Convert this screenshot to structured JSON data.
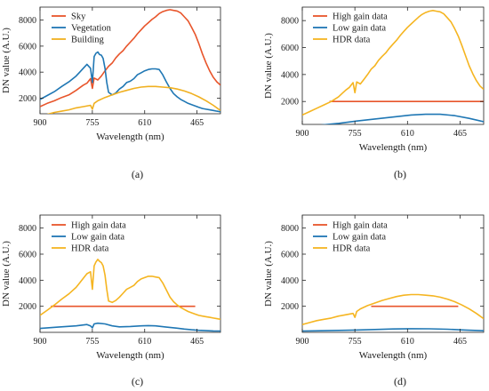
{
  "chart_data": [
    {
      "type": "line",
      "caption": "(a)",
      "xlabel": "Wavelength (nm)",
      "ylabel": "DN value (A.U.)",
      "x_ticks": [
        "900",
        "755",
        "610",
        "465"
      ],
      "y_ticks": [
        "2000",
        "4000",
        "6000",
        "8000"
      ],
      "xlim": [
        900,
        400
      ],
      "ylim": [
        800,
        9000
      ],
      "legend_position": "top-left",
      "series": [
        {
          "name": "Sky",
          "color": "#e8552b",
          "x": [
            900,
            880,
            860,
            840,
            820,
            800,
            790,
            780,
            770,
            760,
            755,
            750,
            740,
            730,
            720,
            710,
            700,
            690,
            680,
            670,
            660,
            650,
            640,
            630,
            620,
            610,
            600,
            590,
            580,
            570,
            560,
            550,
            540,
            530,
            520,
            510,
            500,
            490,
            480,
            470,
            460,
            450,
            440,
            430,
            420,
            410,
            400
          ],
          "y": [
            1350,
            1600,
            1800,
            2050,
            2250,
            2600,
            2800,
            3000,
            3150,
            3500,
            2750,
            3550,
            3400,
            3700,
            4100,
            4450,
            4700,
            5100,
            5400,
            5650,
            6000,
            6300,
            6600,
            6950,
            7250,
            7550,
            7800,
            8050,
            8250,
            8500,
            8650,
            8750,
            8800,
            8750,
            8700,
            8550,
            8250,
            7950,
            7450,
            6900,
            6200,
            5400,
            4700,
            4100,
            3600,
            3250,
            3000
          ]
        },
        {
          "name": "Vegetation",
          "color": "#1f77b4",
          "x": [
            900,
            880,
            860,
            840,
            820,
            800,
            790,
            780,
            770,
            760,
            755,
            750,
            745,
            740,
            735,
            730,
            725,
            720,
            715,
            710,
            700,
            690,
            680,
            670,
            660,
            650,
            640,
            630,
            620,
            610,
            600,
            590,
            580,
            570,
            560,
            550,
            540,
            530,
            520,
            510,
            500,
            490,
            480,
            470,
            460,
            450,
            440,
            430,
            420,
            410,
            400
          ],
          "y": [
            1900,
            2200,
            2500,
            2900,
            3250,
            3700,
            4000,
            4300,
            4600,
            4300,
            3200,
            5200,
            5450,
            5550,
            5350,
            5300,
            5050,
            4300,
            3200,
            2450,
            2250,
            2400,
            2700,
            2900,
            3200,
            3300,
            3500,
            3800,
            3950,
            4100,
            4200,
            4250,
            4250,
            4200,
            3800,
            3250,
            2750,
            2350,
            2100,
            1900,
            1750,
            1600,
            1500,
            1400,
            1300,
            1200,
            1150,
            1100,
            1050,
            1000,
            950
          ]
        },
        {
          "name": "Building",
          "color": "#f0b020",
          "x": [
            900,
            880,
            860,
            840,
            820,
            800,
            780,
            760,
            755,
            750,
            740,
            720,
            700,
            680,
            660,
            640,
            620,
            600,
            580,
            560,
            540,
            520,
            500,
            480,
            460,
            440,
            420,
            400
          ],
          "y": [
            600,
            750,
            900,
            1000,
            1100,
            1250,
            1350,
            1450,
            1150,
            1600,
            1800,
            2050,
            2250,
            2450,
            2600,
            2750,
            2850,
            2900,
            2900,
            2850,
            2800,
            2700,
            2550,
            2350,
            2100,
            1800,
            1450,
            1050
          ]
        }
      ]
    },
    {
      "type": "line",
      "caption": "(b)",
      "xlabel": "Wavelength (nm)",
      "ylabel": "DN value (A.U.)",
      "x_ticks": [
        "900",
        "755",
        "610",
        "465"
      ],
      "y_ticks": [
        "2000",
        "4000",
        "6000",
        "8000"
      ],
      "xlim": [
        900,
        400
      ],
      "ylim": [
        300,
        9000
      ],
      "legend_position": "top-right",
      "series": [
        {
          "name": "High gain data",
          "color": "#e8552b",
          "x": [
            825,
            400
          ],
          "y": [
            2000,
            2000
          ]
        },
        {
          "name": "Low gain data",
          "color": "#1f77b4",
          "x": [
            900,
            850,
            800,
            750,
            700,
            650,
            600,
            560,
            520,
            480,
            440,
            400
          ],
          "y": [
            150,
            250,
            380,
            550,
            700,
            850,
            1000,
            1050,
            1050,
            950,
            750,
            500
          ]
        },
        {
          "name": "HDR data",
          "color": "#f5b521",
          "x": [
            900,
            880,
            860,
            840,
            820,
            800,
            790,
            780,
            770,
            760,
            755,
            750,
            740,
            730,
            720,
            710,
            700,
            690,
            680,
            670,
            660,
            650,
            640,
            630,
            620,
            610,
            600,
            590,
            580,
            570,
            560,
            550,
            540,
            530,
            520,
            510,
            500,
            490,
            480,
            470,
            460,
            450,
            440,
            430,
            420,
            410,
            400
          ],
          "y": [
            1000,
            1250,
            1500,
            1750,
            2000,
            2350,
            2600,
            2850,
            3050,
            3400,
            2650,
            3450,
            3300,
            3650,
            4000,
            4400,
            4650,
            5050,
            5350,
            5600,
            5950,
            6250,
            6550,
            6900,
            7200,
            7500,
            7750,
            8000,
            8250,
            8450,
            8600,
            8700,
            8750,
            8700,
            8650,
            8500,
            8200,
            7900,
            7400,
            6850,
            6150,
            5400,
            4650,
            4050,
            3550,
            3150,
            2900
          ]
        }
      ]
    },
    {
      "type": "line",
      "caption": "(c)",
      "xlabel": "Wavelength (nm)",
      "ylabel": "DN value (A.U.)",
      "x_ticks": [
        "900",
        "755",
        "610",
        "465"
      ],
      "y_ticks": [
        "2000",
        "4000",
        "6000",
        "8000"
      ],
      "xlim": [
        900,
        400
      ],
      "ylim": [
        0,
        9000
      ],
      "legend_position": "top-left",
      "series": [
        {
          "name": "High gain data",
          "color": "#e8552b",
          "x": [
            870,
            470
          ],
          "y": [
            2000,
            2000
          ]
        },
        {
          "name": "Low gain data",
          "color": "#1f77b4",
          "x": [
            900,
            850,
            800,
            770,
            760,
            755,
            750,
            740,
            720,
            700,
            680,
            650,
            620,
            600,
            580,
            550,
            520,
            500,
            480,
            460,
            440,
            420,
            400
          ],
          "y": [
            300,
            400,
            500,
            600,
            500,
            350,
            650,
            700,
            650,
            500,
            420,
            450,
            500,
            520,
            500,
            400,
            320,
            250,
            200,
            160,
            130,
            110,
            100
          ]
        },
        {
          "name": "HDR data",
          "color": "#f5b521",
          "x": [
            900,
            880,
            860,
            840,
            820,
            800,
            790,
            780,
            770,
            760,
            755,
            750,
            745,
            740,
            735,
            730,
            725,
            720,
            715,
            710,
            700,
            690,
            680,
            670,
            660,
            650,
            640,
            630,
            620,
            610,
            600,
            590,
            580,
            570,
            560,
            550,
            540,
            530,
            520,
            510,
            500,
            490,
            480,
            470,
            460,
            450,
            440,
            430,
            420,
            410,
            400
          ],
          "y": [
            1300,
            1700,
            2100,
            2550,
            2950,
            3450,
            3800,
            4150,
            4500,
            4650,
            3300,
            5100,
            5400,
            5600,
            5450,
            5350,
            5100,
            4400,
            3300,
            2400,
            2300,
            2450,
            2700,
            3000,
            3300,
            3450,
            3600,
            3900,
            4100,
            4200,
            4300,
            4300,
            4250,
            4200,
            3800,
            3250,
            2700,
            2350,
            2100,
            1900,
            1750,
            1600,
            1500,
            1400,
            1300,
            1250,
            1200,
            1150,
            1100,
            1050,
            1000
          ]
        }
      ]
    },
    {
      "type": "line",
      "caption": "(d)",
      "xlabel": "Wavelength (nm)",
      "ylabel": "DN value (A.U.)",
      "x_ticks": [
        "900",
        "755",
        "610",
        "465"
      ],
      "y_ticks": [
        "2000",
        "4000",
        "6000",
        "8000"
      ],
      "xlim": [
        900,
        400
      ],
      "ylim": [
        0,
        9000
      ],
      "legend_position": "top-right",
      "series": [
        {
          "name": "High gain data",
          "color": "#e8552b",
          "x": [
            710,
            470
          ],
          "y": [
            2000,
            2000
          ]
        },
        {
          "name": "Low gain data",
          "color": "#1f77b4",
          "x": [
            900,
            850,
            800,
            755,
            700,
            650,
            600,
            550,
            500,
            450,
            400
          ],
          "y": [
            100,
            120,
            150,
            180,
            220,
            260,
            280,
            270,
            240,
            180,
            120
          ]
        },
        {
          "name": "HDR data",
          "color": "#f5b521",
          "x": [
            900,
            880,
            860,
            840,
            820,
            800,
            780,
            760,
            755,
            750,
            740,
            720,
            700,
            680,
            660,
            640,
            620,
            600,
            580,
            560,
            540,
            520,
            500,
            480,
            460,
            440,
            420,
            400
          ],
          "y": [
            600,
            750,
            900,
            1000,
            1100,
            1250,
            1350,
            1450,
            1150,
            1600,
            1800,
            2050,
            2250,
            2450,
            2600,
            2750,
            2850,
            2900,
            2900,
            2850,
            2800,
            2700,
            2550,
            2350,
            2100,
            1800,
            1450,
            1050
          ]
        }
      ]
    }
  ]
}
